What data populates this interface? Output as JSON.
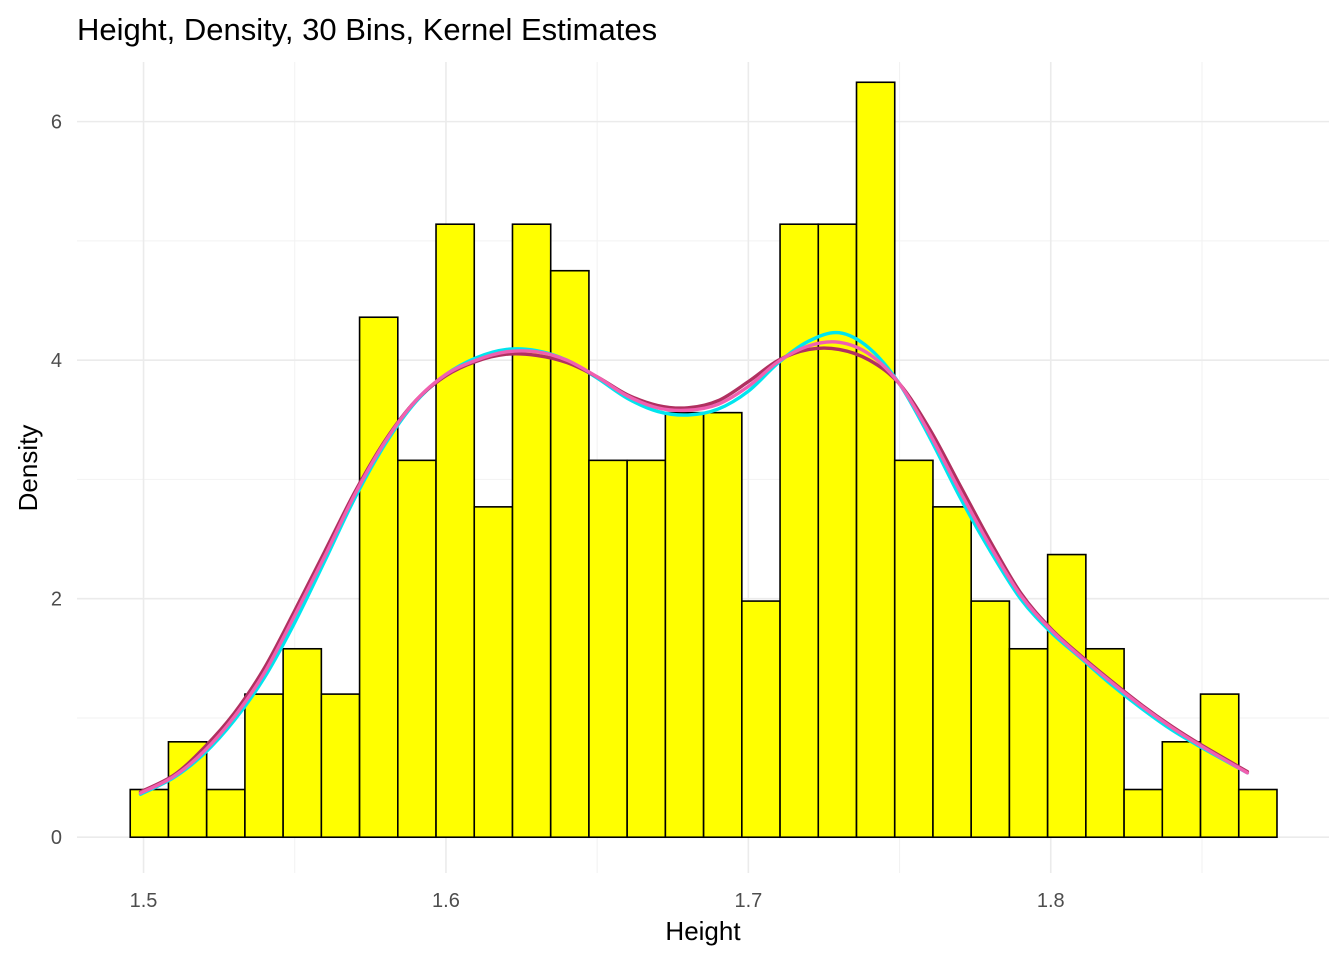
{
  "chart_data": {
    "type": "bar",
    "title": "Height, Density, 30 Bins, Kernel Estimates",
    "xlabel": "Height",
    "ylabel": "Density",
    "xlim": [
      1.478,
      1.892
    ],
    "ylim": [
      -0.3,
      6.5
    ],
    "x_ticks": [
      1.5,
      1.6,
      1.7,
      1.8
    ],
    "x_tick_labels": [
      "1.5",
      "1.6",
      "1.7",
      "1.8"
    ],
    "y_ticks": [
      0,
      2,
      4,
      6
    ],
    "y_tick_labels": [
      "0",
      "2",
      "4",
      "6"
    ],
    "grid": true,
    "bar_fill": "#FFFF00",
    "bar_outline": "#000000",
    "bins": {
      "start": 1.4956,
      "width": 0.01264,
      "values": [
        0.4,
        0.8,
        0.4,
        1.2,
        1.58,
        1.2,
        4.36,
        3.16,
        5.14,
        2.77,
        5.14,
        4.75,
        3.16,
        3.16,
        3.56,
        3.56,
        1.98,
        5.14,
        5.14,
        6.33,
        3.16,
        2.77,
        1.98,
        1.58,
        2.37,
        1.58,
        0.4,
        0.8,
        1.2,
        0.4
      ]
    },
    "series": [
      {
        "color": "#00E5EE",
        "x": [
          1.499,
          1.51,
          1.52,
          1.53,
          1.54,
          1.55,
          1.56,
          1.57,
          1.58,
          1.59,
          1.6,
          1.61,
          1.62,
          1.63,
          1.64,
          1.65,
          1.66,
          1.67,
          1.68,
          1.69,
          1.7,
          1.71,
          1.72,
          1.73,
          1.74,
          1.75,
          1.76,
          1.77,
          1.78,
          1.79,
          1.8,
          1.81,
          1.82,
          1.83,
          1.84,
          1.85,
          1.865
        ],
        "y": [
          0.36,
          0.5,
          0.7,
          0.98,
          1.34,
          1.8,
          2.32,
          2.85,
          3.3,
          3.65,
          3.88,
          4.02,
          4.09,
          4.08,
          4.0,
          3.85,
          3.68,
          3.57,
          3.54,
          3.59,
          3.74,
          3.98,
          4.16,
          4.23,
          4.1,
          3.8,
          3.35,
          2.85,
          2.4,
          2.0,
          1.72,
          1.5,
          1.28,
          1.08,
          0.9,
          0.75,
          0.54
        ]
      },
      {
        "color": "#B03060",
        "x": [
          1.499,
          1.51,
          1.52,
          1.53,
          1.54,
          1.55,
          1.56,
          1.57,
          1.58,
          1.59,
          1.6,
          1.61,
          1.62,
          1.63,
          1.64,
          1.65,
          1.66,
          1.67,
          1.68,
          1.69,
          1.7,
          1.71,
          1.72,
          1.73,
          1.74,
          1.75,
          1.76,
          1.77,
          1.78,
          1.79,
          1.8,
          1.81,
          1.82,
          1.83,
          1.84,
          1.85,
          1.865
        ],
        "y": [
          0.38,
          0.52,
          0.75,
          1.04,
          1.42,
          1.9,
          2.4,
          2.9,
          3.33,
          3.66,
          3.87,
          3.99,
          4.05,
          4.04,
          3.98,
          3.86,
          3.71,
          3.62,
          3.6,
          3.66,
          3.82,
          4.0,
          4.09,
          4.09,
          4.0,
          3.8,
          3.42,
          2.95,
          2.48,
          2.05,
          1.75,
          1.52,
          1.31,
          1.11,
          0.93,
          0.77,
          0.55
        ]
      },
      {
        "color": "#F060B0",
        "x": [
          1.499,
          1.51,
          1.52,
          1.53,
          1.54,
          1.55,
          1.56,
          1.57,
          1.58,
          1.59,
          1.6,
          1.61,
          1.62,
          1.63,
          1.64,
          1.65,
          1.66,
          1.67,
          1.68,
          1.69,
          1.7,
          1.71,
          1.72,
          1.73,
          1.74,
          1.75,
          1.76,
          1.77,
          1.78,
          1.79,
          1.8,
          1.81,
          1.82,
          1.83,
          1.84,
          1.85,
          1.865
        ],
        "y": [
          0.37,
          0.51,
          0.72,
          1.01,
          1.38,
          1.86,
          2.36,
          2.88,
          3.32,
          3.66,
          3.88,
          4.0,
          4.07,
          4.07,
          4.0,
          3.86,
          3.7,
          3.6,
          3.58,
          3.63,
          3.78,
          3.99,
          4.12,
          4.15,
          4.05,
          3.8,
          3.38,
          2.9,
          2.44,
          2.03,
          1.74,
          1.51,
          1.3,
          1.1,
          0.92,
          0.76,
          0.54
        ]
      }
    ]
  }
}
